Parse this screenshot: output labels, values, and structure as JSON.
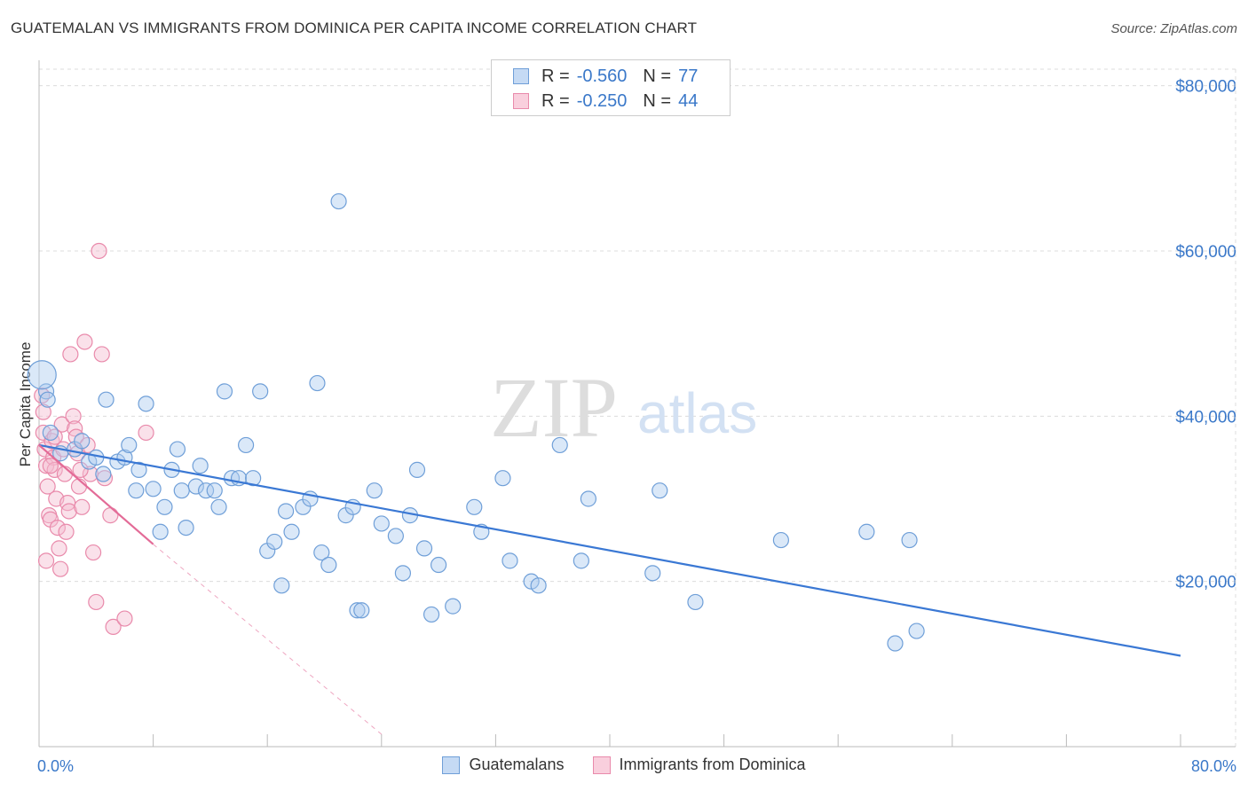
{
  "title": "GUATEMALAN VS IMMIGRANTS FROM DOMINICA PER CAPITA INCOME CORRELATION CHART",
  "source": "Source: ZipAtlas.com",
  "watermark": {
    "zip": "ZIP",
    "atlas": "atlas"
  },
  "legend": {
    "r_label": "R =",
    "n_label": "N =",
    "series1": {
      "r": "-0.560",
      "n": "77"
    },
    "series2": {
      "r": "-0.250",
      "n": "44"
    }
  },
  "colors": {
    "blue_fill": "#aecbf0",
    "blue_stroke": "#6f9fd8",
    "blue_line": "#3a78d4",
    "pink_fill": "#f5bcd0",
    "pink_stroke": "#e98aab",
    "pink_line": "#e36b97",
    "axis_text": "#3a78c9"
  },
  "chart_data": {
    "type": "scatter",
    "title": "GUATEMALAN VS IMMIGRANTS FROM DOMINICA PER CAPITA INCOME CORRELATION CHART",
    "xlabel": "",
    "ylabel": "Per Capita Income",
    "xlim": [
      0,
      80
    ],
    "ylim": [
      0,
      82000
    ],
    "x_tick_labels": [
      "0.0%",
      "80.0%"
    ],
    "y_ticks": [
      20000,
      40000,
      60000,
      80000
    ],
    "y_tick_labels": [
      "$20,000",
      "$40,000",
      "$60,000",
      "$80,000"
    ],
    "grid": true,
    "series": [
      {
        "name": "Guatemalans",
        "points": [
          [
            0.5,
            43000
          ],
          [
            0.6,
            42000
          ],
          [
            0.8,
            38000
          ],
          [
            1.5,
            35500
          ],
          [
            2.5,
            36000
          ],
          [
            3,
            37000
          ],
          [
            3.5,
            34500
          ],
          [
            4,
            35000
          ],
          [
            4.5,
            33000
          ],
          [
            4.7,
            42000
          ],
          [
            5.5,
            34500
          ],
          [
            6,
            35000
          ],
          [
            6.3,
            36500
          ],
          [
            6.8,
            31000
          ],
          [
            7,
            33500
          ],
          [
            7.5,
            41500
          ],
          [
            8,
            31200
          ],
          [
            8.5,
            26000
          ],
          [
            8.8,
            29000
          ],
          [
            9.3,
            33500
          ],
          [
            9.7,
            36000
          ],
          [
            10,
            31000
          ],
          [
            10.3,
            26500
          ],
          [
            11,
            31500
          ],
          [
            11.3,
            34000
          ],
          [
            11.7,
            31000
          ],
          [
            12.3,
            31000
          ],
          [
            12.6,
            29000
          ],
          [
            13,
            43000
          ],
          [
            13.5,
            32500
          ],
          [
            14,
            32500
          ],
          [
            14.5,
            36500
          ],
          [
            15,
            32500
          ],
          [
            15.5,
            43000
          ],
          [
            16,
            23700
          ],
          [
            16.5,
            24800
          ],
          [
            17,
            19500
          ],
          [
            17.3,
            28500
          ],
          [
            17.7,
            26000
          ],
          [
            18.5,
            29000
          ],
          [
            19,
            30000
          ],
          [
            19.5,
            44000
          ],
          [
            19.8,
            23500
          ],
          [
            20.3,
            22000
          ],
          [
            21,
            66000
          ],
          [
            21.5,
            28000
          ],
          [
            22,
            29000
          ],
          [
            22.3,
            16500
          ],
          [
            22.6,
            16500
          ],
          [
            23.5,
            31000
          ],
          [
            24,
            27000
          ],
          [
            25,
            25500
          ],
          [
            25.5,
            21000
          ],
          [
            26,
            28000
          ],
          [
            26.5,
            33500
          ],
          [
            27,
            24000
          ],
          [
            27.5,
            16000
          ],
          [
            28,
            22000
          ],
          [
            29,
            17000
          ],
          [
            30.5,
            29000
          ],
          [
            31,
            26000
          ],
          [
            32.5,
            32500
          ],
          [
            33,
            22500
          ],
          [
            34.5,
            20000
          ],
          [
            35,
            19500
          ],
          [
            36.5,
            36500
          ],
          [
            38,
            22500
          ],
          [
            38.5,
            30000
          ],
          [
            43,
            21000
          ],
          [
            43.5,
            31000
          ],
          [
            46,
            17500
          ],
          [
            52,
            25000
          ],
          [
            58,
            26000
          ],
          [
            61,
            25000
          ],
          [
            60,
            12500
          ],
          [
            61.5,
            14000
          ],
          [
            0.2,
            45000
          ]
        ],
        "trend": {
          "x0": 0,
          "y0": 36500,
          "x1": 80,
          "y1": 11000
        }
      },
      {
        "name": "Immigrants from Dominica",
        "points": [
          [
            0.2,
            42500
          ],
          [
            0.3,
            38000
          ],
          [
            0.4,
            36000
          ],
          [
            0.5,
            34000
          ],
          [
            0.6,
            31500
          ],
          [
            0.7,
            28000
          ],
          [
            0.8,
            27500
          ],
          [
            0.9,
            37000
          ],
          [
            1,
            35000
          ],
          [
            1.1,
            33500
          ],
          [
            1.2,
            30000
          ],
          [
            1.3,
            26500
          ],
          [
            1.4,
            24000
          ],
          [
            1.5,
            21500
          ],
          [
            1.6,
            39000
          ],
          [
            1.7,
            36000
          ],
          [
            1.8,
            33000
          ],
          [
            2,
            29500
          ],
          [
            2.1,
            28500
          ],
          [
            2.2,
            47500
          ],
          [
            2.4,
            40000
          ],
          [
            2.5,
            38500
          ],
          [
            2.6,
            37500
          ],
          [
            2.7,
            35500
          ],
          [
            2.8,
            31500
          ],
          [
            3,
            29000
          ],
          [
            3.2,
            49000
          ],
          [
            3.4,
            36500
          ],
          [
            3.6,
            33000
          ],
          [
            3.8,
            23500
          ],
          [
            4,
            17500
          ],
          [
            4.2,
            60000
          ],
          [
            4.4,
            47500
          ],
          [
            4.6,
            32500
          ],
          [
            5,
            28000
          ],
          [
            5.2,
            14500
          ],
          [
            6,
            15500
          ],
          [
            7.5,
            38000
          ],
          [
            0.3,
            40500
          ],
          [
            0.5,
            22500
          ],
          [
            1.9,
            26000
          ],
          [
            0.8,
            34000
          ],
          [
            1.1,
            37500
          ],
          [
            2.9,
            33500
          ]
        ],
        "trend": {
          "x0": 0,
          "y0": 36500,
          "x1": 8,
          "y1": 24500
        },
        "trend_extension": {
          "x0": 8,
          "y0": 24500,
          "x1": 24,
          "y1": 1500
        }
      }
    ]
  }
}
